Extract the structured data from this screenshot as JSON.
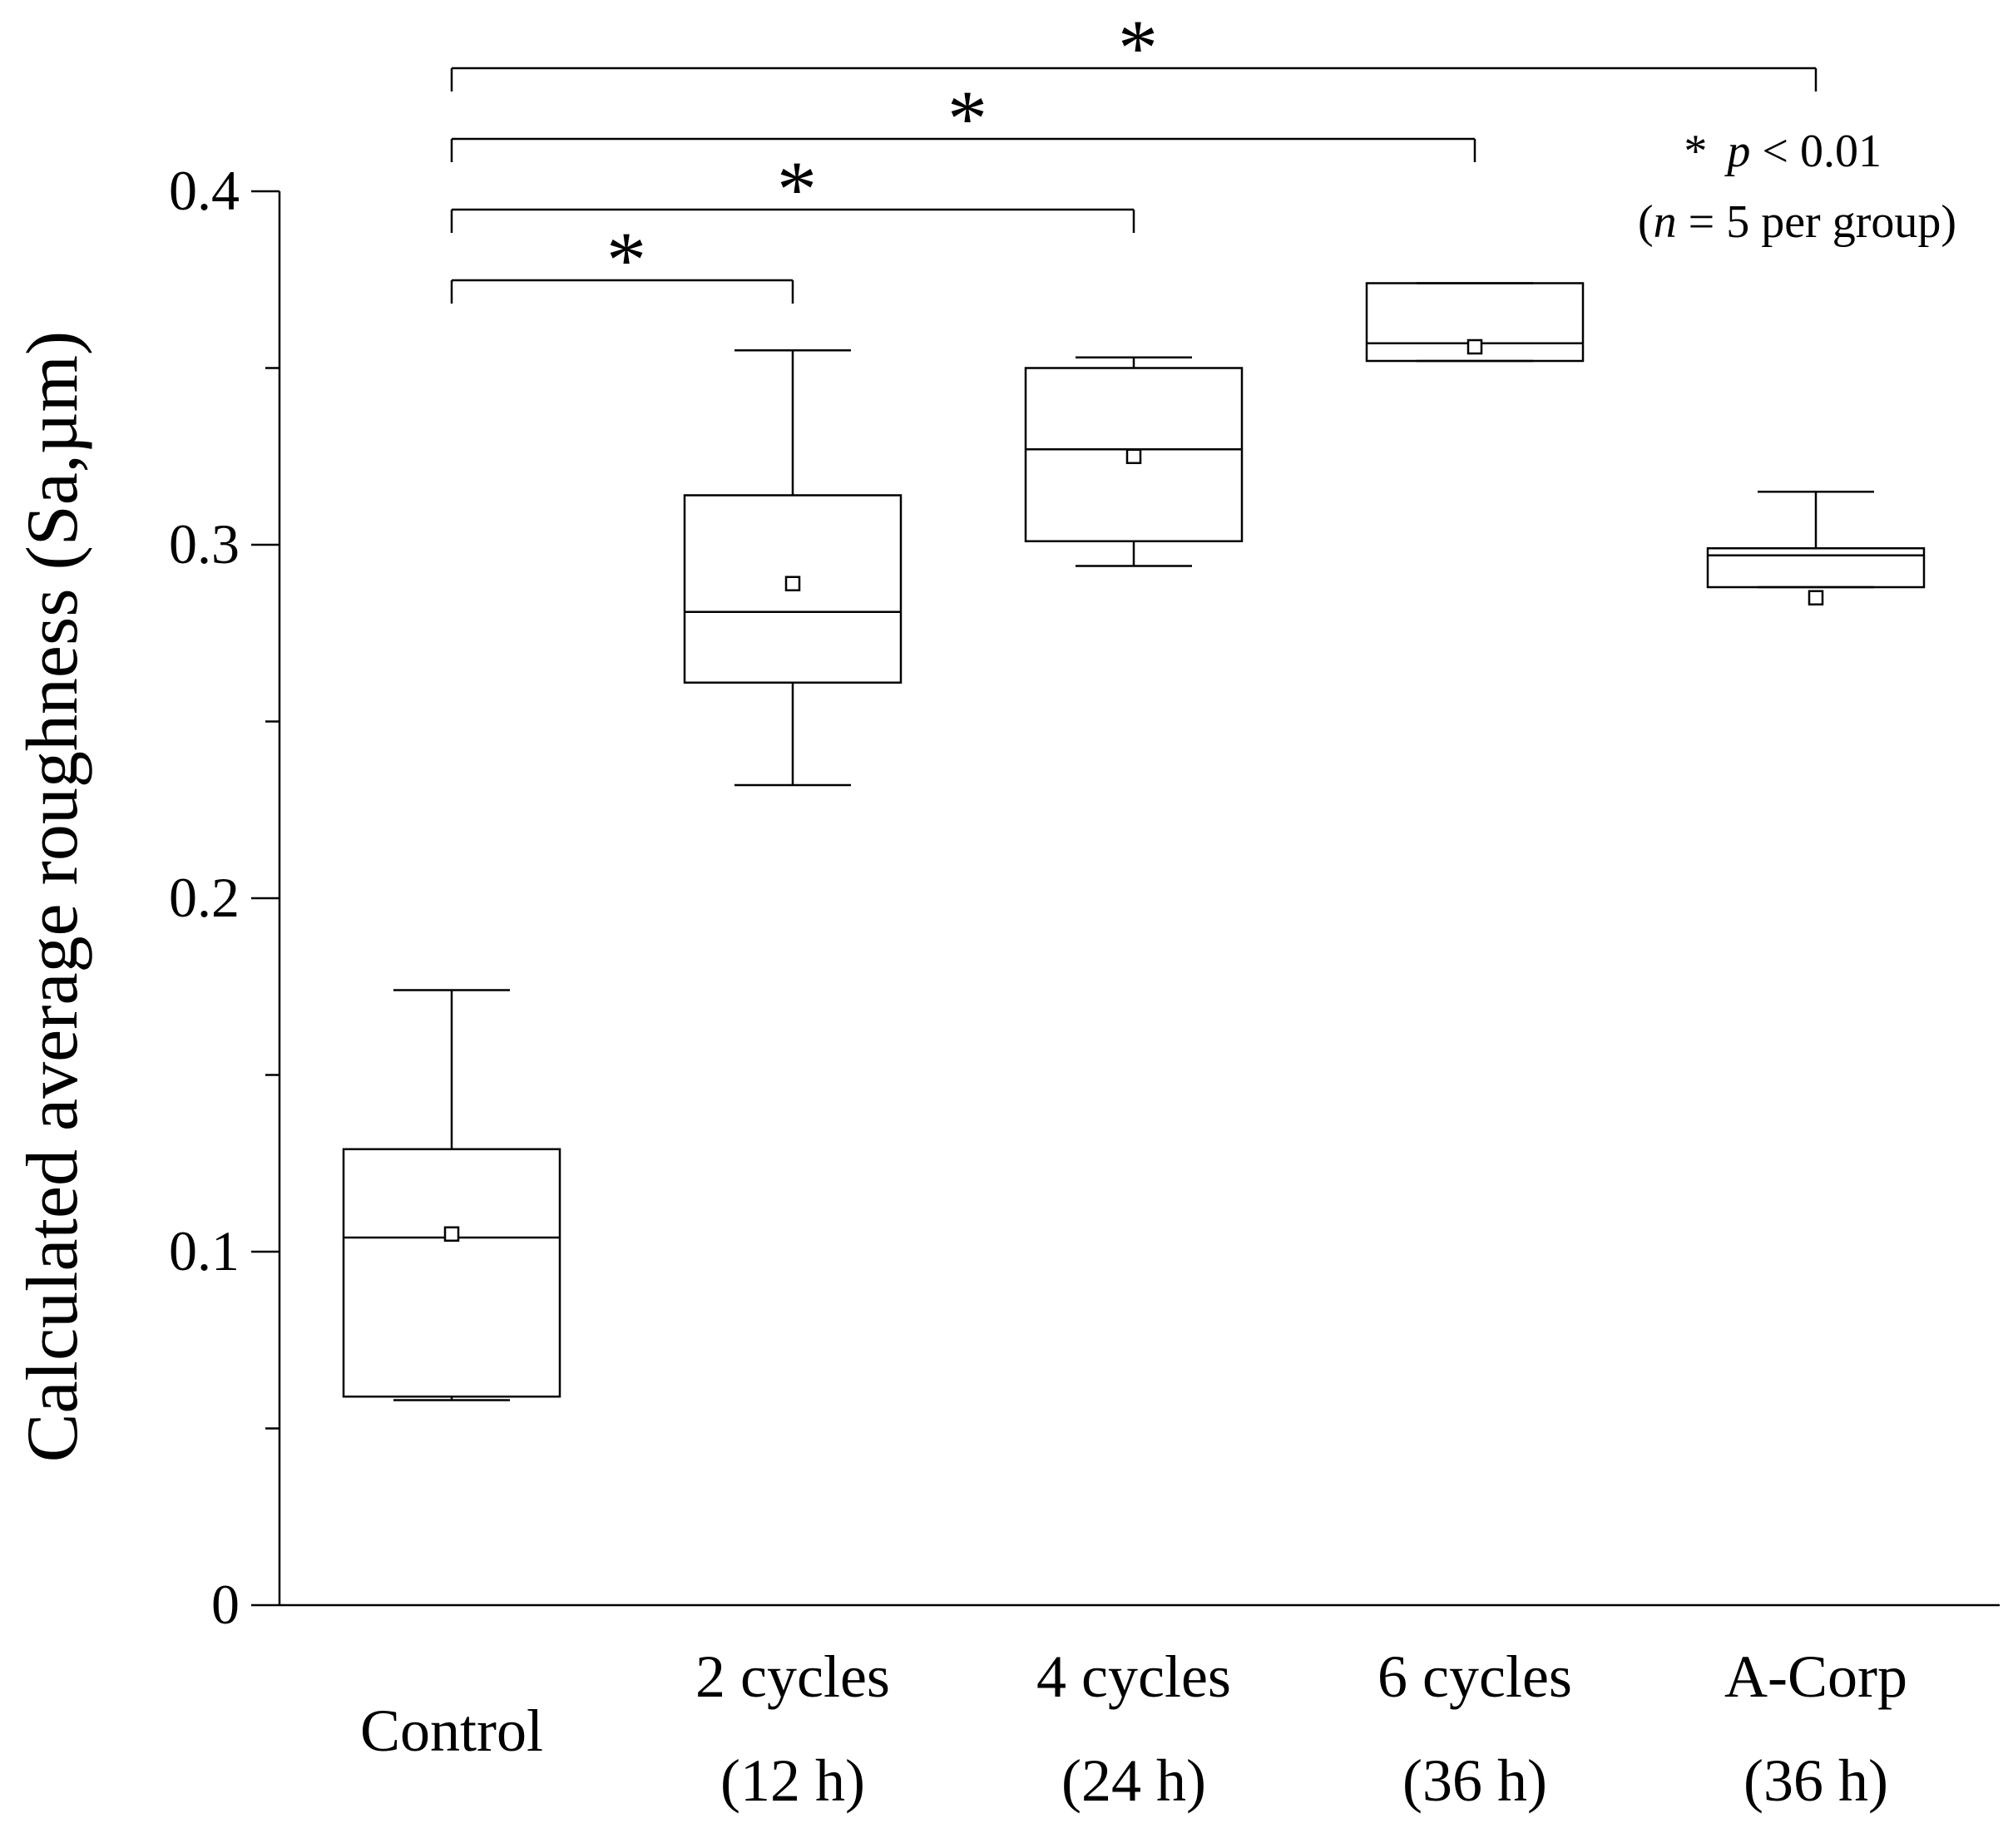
{
  "chart_data": {
    "type": "box",
    "title": "",
    "xlabel": "",
    "ylabel": "Calculated average roughness (Sa,µm)",
    "ylim": [
      0,
      0.4
    ],
    "yticks": [
      "0",
      "0.1",
      "0.2",
      "0.3",
      "0.4"
    ],
    "minor_ytick_values": [
      0.05,
      0.15,
      0.25,
      0.35
    ],
    "categories": [
      {
        "line1": "Control",
        "line2": ""
      },
      {
        "line1": "2 cycles",
        "line2": "(12 h)"
      },
      {
        "line1": "4 cycles",
        "line2": "(24 h)"
      },
      {
        "line1": "6 cycles",
        "line2": "(36 h)"
      },
      {
        "line1": "A-Corp",
        "line2": "(36 h)"
      }
    ],
    "boxes": [
      {
        "whisker_low": 0.058,
        "q1": 0.059,
        "median": 0.104,
        "q3": 0.129,
        "whisker_high": 0.174,
        "mean": 0.105
      },
      {
        "whisker_low": 0.232,
        "q1": 0.261,
        "median": 0.281,
        "q3": 0.314,
        "whisker_high": 0.355,
        "mean": 0.289
      },
      {
        "whisker_low": 0.294,
        "q1": 0.301,
        "median": 0.327,
        "q3": 0.35,
        "whisker_high": 0.353,
        "mean": 0.325
      },
      {
        "whisker_low": 0.352,
        "q1": 0.352,
        "median": 0.357,
        "q3": 0.374,
        "whisker_high": 0.374,
        "mean": 0.356
      },
      {
        "whisker_low": 0.288,
        "q1": 0.288,
        "median": 0.297,
        "q3": 0.299,
        "whisker_high": 0.315,
        "mean": 0.285
      }
    ],
    "significance": [
      {
        "from": 0,
        "to": 1,
        "label": "*"
      },
      {
        "from": 0,
        "to": 2,
        "label": "*"
      },
      {
        "from": 0,
        "to": 3,
        "label": "*"
      },
      {
        "from": 0,
        "to": 4,
        "label": "*"
      }
    ],
    "legend": {
      "star": "*",
      "p_italic": "p",
      "p_rest": " < 0.01",
      "n_open": "(",
      "n_italic": "n",
      "n_rest": " = 5 per group)"
    }
  }
}
